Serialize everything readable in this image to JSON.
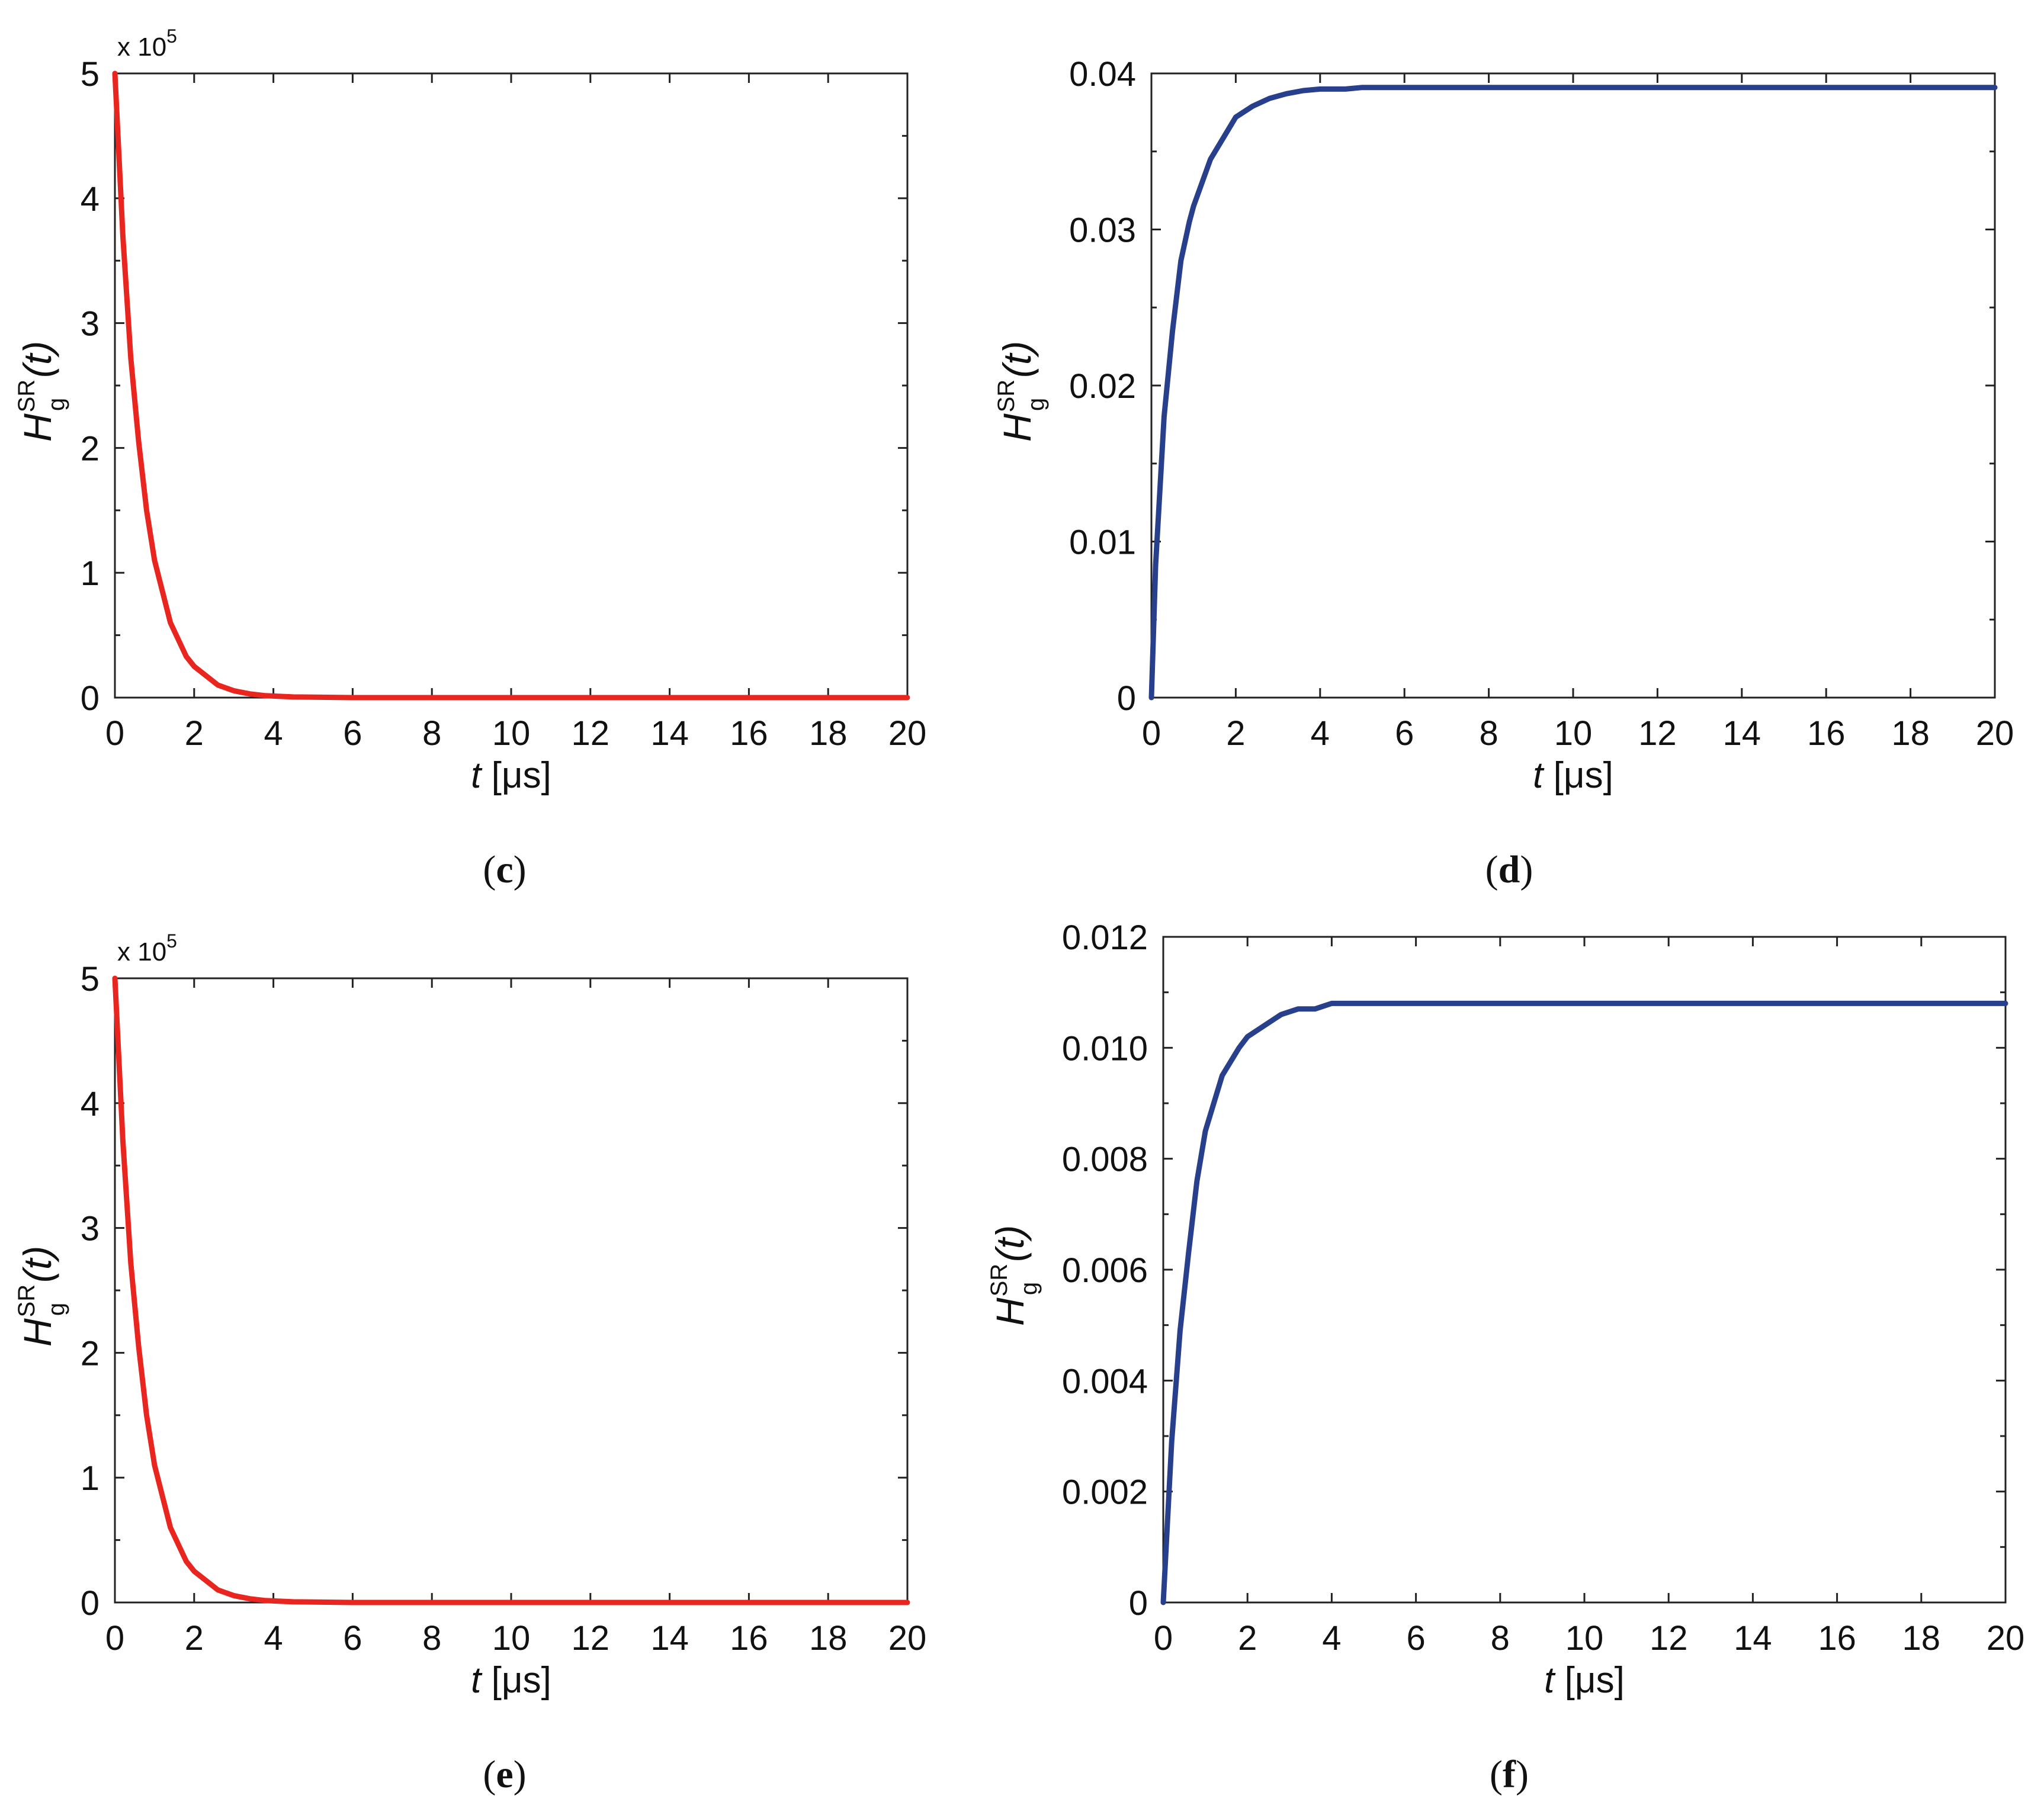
{
  "chart_data": [
    {
      "id": "c",
      "type": "line",
      "panel_label": "c",
      "xlabel": "t",
      "xlabel_unit": "[μs]",
      "ylabel": "H",
      "ylabel_sub": "g",
      "ylabel_sup": "SR",
      "ylabel_arg": "(t)",
      "y_multiplier": "x 10",
      "y_multiplier_exp": "5",
      "xlim": [
        0,
        20
      ],
      "ylim": [
        0,
        5
      ],
      "xticks": [
        0,
        2,
        4,
        6,
        8,
        10,
        12,
        14,
        16,
        18,
        20
      ],
      "xtick_labels": [
        "0",
        "2",
        "4",
        "6",
        "8",
        "10",
        "12",
        "14",
        "16",
        "18",
        "20"
      ],
      "yticks": [
        0,
        1,
        2,
        3,
        4,
        5
      ],
      "ytick_labels": [
        "0",
        "1",
        "2",
        "3",
        "4",
        "5"
      ],
      "yminor": [
        0.5,
        1.5,
        2.5,
        3.5,
        4.5
      ],
      "grid": false,
      "series": [
        {
          "name": "",
          "color": "#e8261f",
          "x": [
            0,
            0.2,
            0.4,
            0.6,
            0.8,
            1.0,
            1.4,
            1.8,
            2.0,
            2.2,
            2.6,
            3.0,
            3.4,
            3.8,
            4.5,
            6,
            8,
            10,
            12,
            14,
            16,
            18,
            20
          ],
          "y": [
            5,
            3.7,
            2.72,
            2.05,
            1.5,
            1.1,
            0.6,
            0.33,
            0.25,
            0.2,
            0.1,
            0.055,
            0.03,
            0.015,
            0.005,
            0,
            0,
            0,
            0,
            0,
            0,
            0,
            0
          ]
        }
      ]
    },
    {
      "id": "d",
      "type": "line",
      "panel_label": "d",
      "xlabel": "t",
      "xlabel_unit": "[μs]",
      "ylabel": "H",
      "ylabel_sub": "g",
      "ylabel_sup": "SR",
      "ylabel_arg": "(t)",
      "xlim": [
        0,
        20
      ],
      "ylim": [
        0,
        0.04
      ],
      "xticks": [
        0,
        2,
        4,
        6,
        8,
        10,
        12,
        14,
        16,
        18,
        20
      ],
      "xtick_labels": [
        "0",
        "2",
        "4",
        "6",
        "8",
        "10",
        "12",
        "14",
        "16",
        "18",
        "20"
      ],
      "yticks": [
        0,
        0.01,
        0.02,
        0.03,
        0.04
      ],
      "ytick_labels": [
        "0",
        "0.01",
        "0.02",
        "0.03",
        "0.04"
      ],
      "yminor": [
        0.005,
        0.015,
        0.025,
        0.035
      ],
      "grid": false,
      "series": [
        {
          "name": "",
          "color": "#283f8c",
          "x": [
            0,
            0.1,
            0.3,
            0.5,
            0.7,
            0.9,
            1.0,
            1.4,
            1.8,
            2.0,
            2.4,
            2.8,
            3.2,
            3.6,
            4.0,
            4.6,
            5.0,
            8,
            12,
            16,
            20
          ],
          "y": [
            0,
            0.0085,
            0.018,
            0.0235,
            0.028,
            0.0305,
            0.0315,
            0.0345,
            0.0363,
            0.0372,
            0.0379,
            0.0384,
            0.0387,
            0.0389,
            0.039,
            0.039,
            0.0391,
            0.0391,
            0.0391,
            0.0391,
            0.0391
          ]
        }
      ]
    },
    {
      "id": "e",
      "type": "line",
      "panel_label": "e",
      "xlabel": "t",
      "xlabel_unit": "[μs]",
      "ylabel": "H",
      "ylabel_sub": "g",
      "ylabel_sup": "SR",
      "ylabel_arg": "(t)",
      "y_multiplier": "x 10",
      "y_multiplier_exp": "5",
      "xlim": [
        0,
        20
      ],
      "ylim": [
        0,
        5
      ],
      "xticks": [
        0,
        2,
        4,
        6,
        8,
        10,
        12,
        14,
        16,
        18,
        20
      ],
      "xtick_labels": [
        "0",
        "2",
        "4",
        "6",
        "8",
        "10",
        "12",
        "14",
        "16",
        "18",
        "20"
      ],
      "yticks": [
        0,
        1,
        2,
        3,
        4,
        5
      ],
      "ytick_labels": [
        "0",
        "1",
        "2",
        "3",
        "4",
        "5"
      ],
      "yminor": [
        0.5,
        1.5,
        2.5,
        3.5,
        4.5
      ],
      "grid": false,
      "series": [
        {
          "name": "",
          "color": "#e8261f",
          "x": [
            0,
            0.2,
            0.4,
            0.6,
            0.8,
            1.0,
            1.4,
            1.8,
            2.0,
            2.2,
            2.6,
            3.0,
            3.4,
            3.8,
            4.5,
            6,
            8,
            10,
            12,
            14,
            16,
            18,
            20
          ],
          "y": [
            5,
            3.7,
            2.72,
            2.05,
            1.5,
            1.1,
            0.6,
            0.33,
            0.25,
            0.2,
            0.1,
            0.055,
            0.03,
            0.015,
            0.005,
            0,
            0,
            0,
            0,
            0,
            0,
            0,
            0
          ]
        }
      ]
    },
    {
      "id": "f",
      "type": "line",
      "panel_label": "f",
      "xlabel": "t",
      "xlabel_unit": "[μs]",
      "ylabel": "H",
      "ylabel_sub": "g",
      "ylabel_sup": "SR",
      "ylabel_arg": "(t)",
      "xlim": [
        0,
        20
      ],
      "ylim": [
        0,
        0.012
      ],
      "xticks": [
        0,
        2,
        4,
        6,
        8,
        10,
        12,
        14,
        16,
        18,
        20
      ],
      "xtick_labels": [
        "0",
        "2",
        "4",
        "6",
        "8",
        "10",
        "12",
        "14",
        "16",
        "18",
        "20"
      ],
      "yticks": [
        0,
        0.002,
        0.004,
        0.006,
        0.008,
        0.01,
        0.012
      ],
      "ytick_labels": [
        "0",
        "0.002",
        "0.004",
        "0.006",
        "0.008",
        "0.010",
        "0.012"
      ],
      "yminor": [
        0.001,
        0.003,
        0.005,
        0.007,
        0.009,
        0.011
      ],
      "grid": false,
      "series": [
        {
          "name": "",
          "color": "#283f8c",
          "x": [
            0,
            0.2,
            0.4,
            0.6,
            0.8,
            1.0,
            1.4,
            1.8,
            2.0,
            2.4,
            2.8,
            3.2,
            3.6,
            4.0,
            4.6,
            5.0,
            8,
            12,
            16,
            20
          ],
          "y": [
            0,
            0.0029,
            0.0049,
            0.0063,
            0.0076,
            0.0085,
            0.0095,
            0.01,
            0.0102,
            0.0104,
            0.0106,
            0.0107,
            0.0107,
            0.0108,
            0.0108,
            0.0108,
            0.0108,
            0.0108,
            0.0108,
            0.0108
          ]
        }
      ]
    }
  ]
}
